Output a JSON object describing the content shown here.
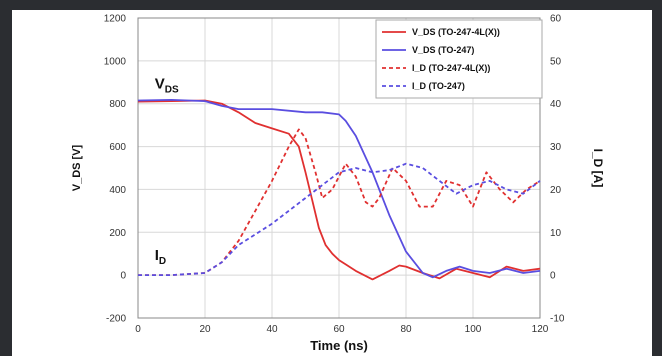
{
  "chart_data": {
    "type": "line",
    "title": "",
    "xlabel": "Time (ns)",
    "ylabel_left": "V_DS [V]",
    "ylabel_right": "I_D [A]",
    "xlim": [
      0,
      120
    ],
    "ylim_left": [
      -200,
      1200
    ],
    "ylim_right": [
      -10,
      60
    ],
    "xticks": [
      0,
      20,
      40,
      60,
      80,
      100,
      120
    ],
    "yticks_left": [
      -200,
      0,
      200,
      400,
      600,
      800,
      1000,
      1200
    ],
    "yticks_right": [
      -10,
      0,
      10,
      20,
      30,
      40,
      50,
      60
    ],
    "grid": true,
    "legend_position": "top-right",
    "annotations": [
      {
        "text": "V",
        "sub": "DS",
        "x": 5,
        "y": 870
      },
      {
        "text": "I",
        "sub": "D",
        "x": 5,
        "y": 70
      }
    ],
    "series": [
      {
        "name": "V_DS (TO-247-4L(X))",
        "axis": "left",
        "color": "#e03030",
        "dash": false,
        "x": [
          0,
          10,
          20,
          25,
          30,
          35,
          40,
          45,
          48,
          50,
          52,
          54,
          56,
          58,
          60,
          62,
          65,
          70,
          75,
          78,
          80,
          85,
          90,
          95,
          100,
          105,
          110,
          115,
          120
        ],
        "y": [
          810,
          812,
          815,
          800,
          760,
          710,
          685,
          660,
          600,
          480,
          350,
          220,
          140,
          100,
          70,
          50,
          20,
          -20,
          20,
          45,
          40,
          10,
          -15,
          30,
          10,
          -10,
          40,
          20,
          30
        ]
      },
      {
        "name": "V_DS (TO-247)",
        "axis": "left",
        "color": "#5a4ee0",
        "dash": false,
        "x": [
          0,
          10,
          20,
          25,
          30,
          40,
          50,
          55,
          60,
          62,
          65,
          70,
          75,
          80,
          85,
          88,
          92,
          96,
          100,
          105,
          110,
          115,
          120
        ],
        "y": [
          815,
          818,
          812,
          790,
          775,
          775,
          760,
          760,
          750,
          720,
          650,
          480,
          280,
          110,
          10,
          -10,
          20,
          40,
          20,
          10,
          30,
          10,
          20
        ]
      },
      {
        "name": "I_D (TO-247-4L(X))",
        "axis": "right",
        "color": "#e03030",
        "dash": true,
        "x": [
          0,
          10,
          20,
          25,
          30,
          35,
          40,
          45,
          48,
          50,
          53,
          55,
          58,
          62,
          65,
          68,
          70,
          72,
          76,
          80,
          84,
          88,
          92,
          96,
          100,
          104,
          108,
          112,
          116,
          120
        ],
        "y": [
          0,
          0,
          0.5,
          3,
          8,
          15,
          22,
          30,
          34,
          32,
          24,
          18,
          20,
          26,
          23,
          17,
          16,
          18,
          25,
          22,
          16,
          16,
          22,
          21,
          16,
          24,
          20,
          17,
          20,
          22
        ]
      },
      {
        "name": "I_D (TO-247)",
        "axis": "right",
        "color": "#5a4ee0",
        "dash": true,
        "x": [
          0,
          10,
          20,
          25,
          30,
          40,
          50,
          55,
          60,
          65,
          70,
          75,
          80,
          85,
          90,
          95,
          100,
          105,
          110,
          115,
          120
        ],
        "y": [
          0,
          0,
          0.5,
          3,
          7,
          12,
          18,
          21,
          24,
          25,
          24,
          24.5,
          26,
          25,
          22,
          19,
          21,
          22,
          20,
          19,
          22
        ]
      }
    ]
  }
}
